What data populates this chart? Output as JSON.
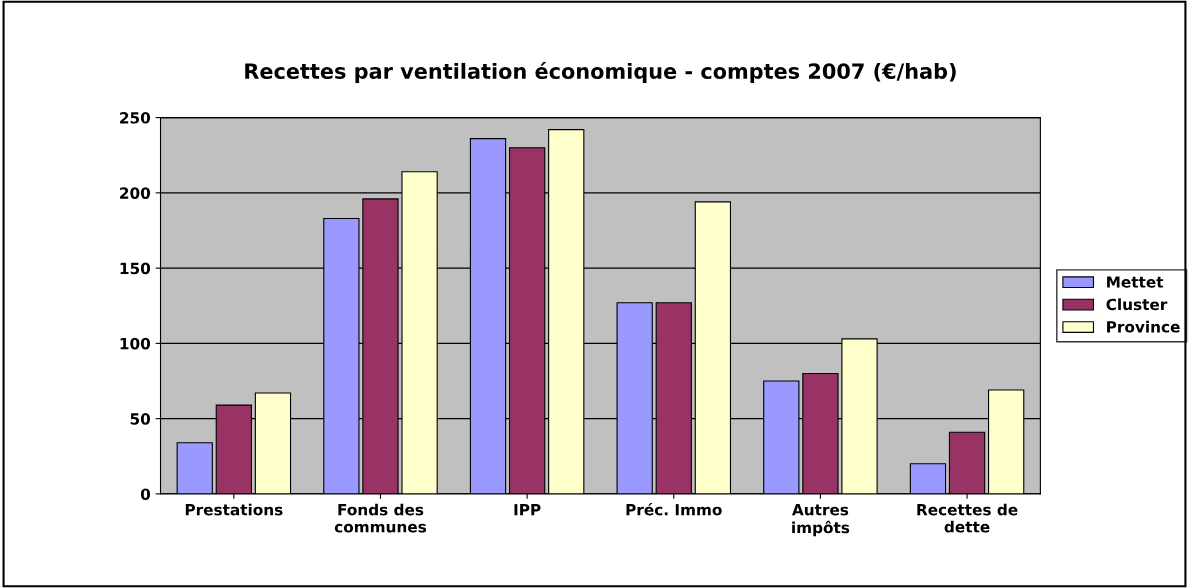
{
  "chart_data": {
    "type": "bar",
    "title": "Recettes par ventilation économique - comptes 2007 (€/hab)",
    "categories": [
      "Prestations",
      "Fonds des\ncommunes",
      "IPP",
      "Préc. Immo",
      "Autres\nimpôts",
      "Recettes de\ndette"
    ],
    "series": [
      {
        "name": "Mettet",
        "color": "#9999ff",
        "values": [
          34,
          183,
          236,
          127,
          75,
          20
        ]
      },
      {
        "name": "Cluster",
        "color": "#993366",
        "values": [
          59,
          196,
          230,
          127,
          80,
          41
        ]
      },
      {
        "name": "Province",
        "color": "#ffffcc",
        "values": [
          67,
          214,
          242,
          194,
          103,
          69
        ]
      }
    ],
    "ylim": [
      0,
      250
    ],
    "yticks": [
      0,
      50,
      100,
      150,
      200,
      250
    ],
    "grid": "y",
    "legend": "right"
  }
}
